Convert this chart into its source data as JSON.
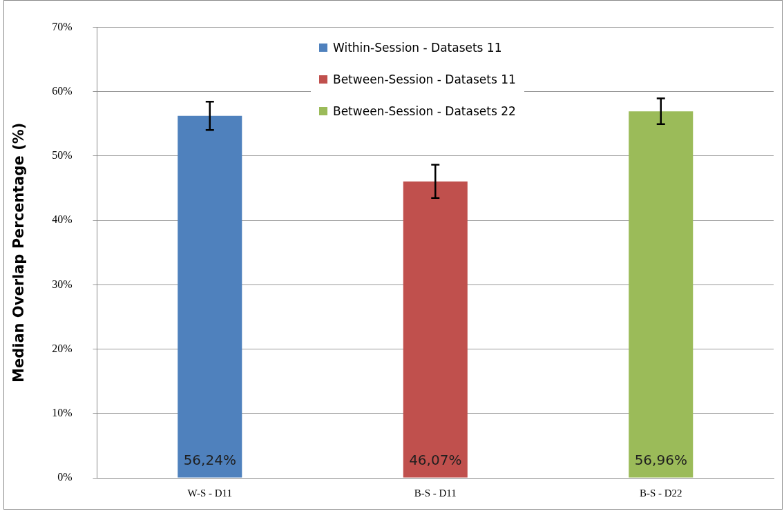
{
  "chart_data": {
    "type": "bar",
    "ylabel": "Median Overlap Percentage (%)",
    "categories": [
      "W-S - D11",
      "B-S - D11",
      "B-S - D22"
    ],
    "series": [
      {
        "name": "Within-Session - Datasets 11",
        "color": "#4f81bd",
        "values": [
          56.24,
          null,
          null
        ],
        "errors": [
          2.2,
          null,
          null
        ],
        "value_labels": [
          "56,24%",
          null,
          null
        ]
      },
      {
        "name": "Between-Session - Datasets 11",
        "color": "#c0504d",
        "values": [
          null,
          46.07,
          null
        ],
        "errors": [
          null,
          2.6,
          null
        ],
        "value_labels": [
          null,
          "46,07%",
          null
        ]
      },
      {
        "name": "Between-Session - Datasets 22",
        "color": "#9bbb59",
        "values": [
          null,
          null,
          56.96
        ],
        "errors": [
          null,
          null,
          2.0
        ],
        "value_labels": [
          null,
          null,
          "56,96%"
        ]
      }
    ],
    "ylim": [
      0,
      70
    ],
    "yticks": [
      {
        "value": 0,
        "label": "0%"
      },
      {
        "value": 10,
        "label": "10%"
      },
      {
        "value": 20,
        "label": "20%"
      },
      {
        "value": 30,
        "label": "30%"
      },
      {
        "value": 40,
        "label": "40%"
      },
      {
        "value": 50,
        "label": "50%"
      },
      {
        "value": 60,
        "label": "60%"
      },
      {
        "value": 70,
        "label": "70%"
      }
    ],
    "grid": "y",
    "legend": "top"
  }
}
